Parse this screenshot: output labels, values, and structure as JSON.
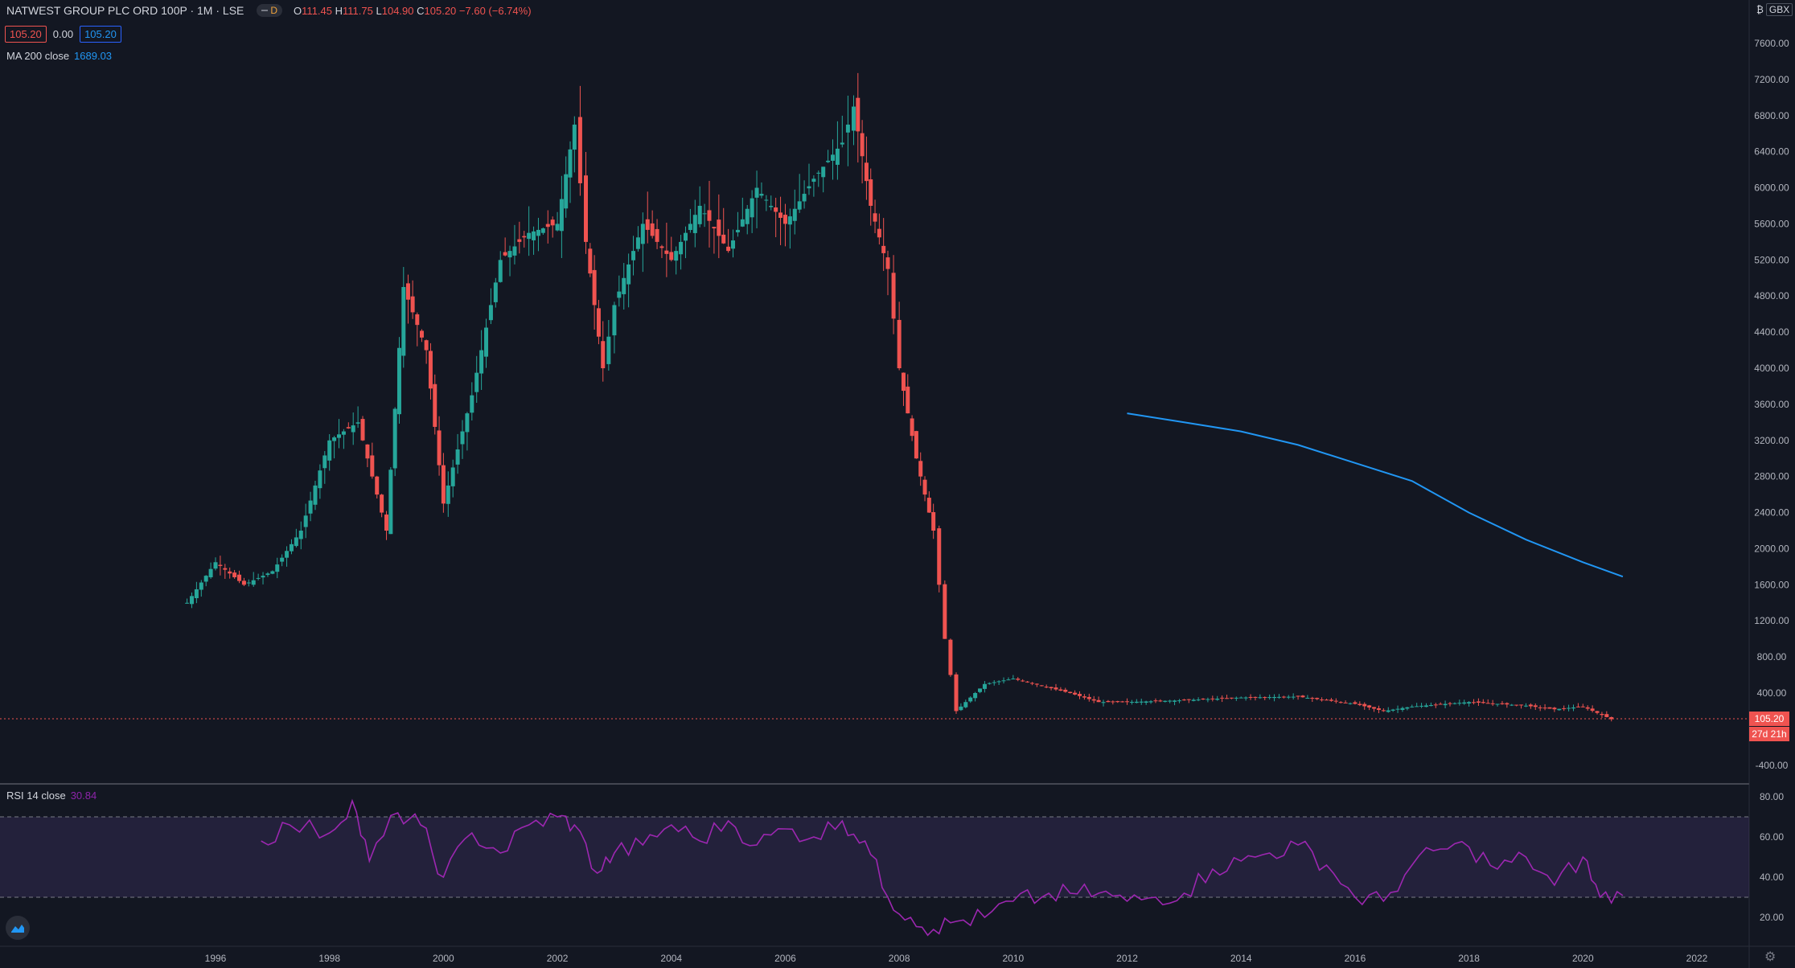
{
  "header": {
    "symbol": "NATWEST GROUP PLC ORD 100P · 1M · LSE",
    "interval_badge": "D",
    "ohlc": {
      "o_label": "O",
      "o": "111.45",
      "h_label": "H",
      "h": "111.75",
      "l_label": "L",
      "l": "104.90",
      "c_label": "C",
      "c": "105.20",
      "change": "−7.60 (−6.74%)"
    },
    "bid": "105.20",
    "spread": "0.00",
    "ask": "105.20"
  },
  "indicators": {
    "ma_label": "MA 200 close",
    "ma_value": "1689.03",
    "rsi_label": "RSI 14 close",
    "rsi_value": "30.84"
  },
  "price_axis": {
    "currency": "GBX",
    "ticks": [
      "7600.00",
      "7200.00",
      "6800.00",
      "6400.00",
      "6000.00",
      "5600.00",
      "5200.00",
      "4800.00",
      "4400.00",
      "4000.00",
      "3600.00",
      "3200.00",
      "2800.00",
      "2400.00",
      "2000.00",
      "1600.00",
      "1200.00",
      "800.00",
      "400.00",
      "-400.00"
    ],
    "last_price_label": "105.20",
    "countdown_label": "27d 21h"
  },
  "rsi_axis": {
    "ticks": [
      "80.00",
      "60.00",
      "40.00",
      "20.00"
    ]
  },
  "time_axis": {
    "ticks": [
      "1996",
      "1998",
      "2000",
      "2002",
      "2004",
      "2006",
      "2008",
      "2010",
      "2012",
      "2014",
      "2016",
      "2018",
      "2020",
      "2022"
    ]
  },
  "colors": {
    "background": "#131722",
    "up": "#26a69a",
    "down": "#ef5350",
    "ma": "#2196f3",
    "rsi": "#9c27b0"
  },
  "chart_data": [
    {
      "type": "candlestick",
      "title": "NATWEST GROUP PLC ORD 100P",
      "interval": "1M",
      "ylim": [
        -600,
        7900
      ],
      "xlim": [
        1994.0,
        2023.0
      ],
      "series": [
        {
          "name": "price",
          "x": [
            1995.5,
            1996.0,
            1996.5,
            1997.0,
            1997.5,
            1998.0,
            1998.5,
            1999.0,
            1999.3,
            1999.7,
            2000.0,
            2000.5,
            2001.0,
            2001.5,
            2002.0,
            2002.3,
            2002.5,
            2002.8,
            2003.0,
            2003.5,
            2004.0,
            2004.5,
            2005.0,
            2005.5,
            2006.0,
            2006.5,
            2007.0,
            2007.2,
            2007.5,
            2007.8,
            2008.0,
            2008.3,
            2008.6,
            2008.8,
            2009.0,
            2009.5,
            2010.0,
            2010.5,
            2011.0,
            2011.5,
            2012.0,
            2013.0,
            2014.0,
            2015.0,
            2016.0,
            2016.5,
            2017.0,
            2018.0,
            2019.0,
            2019.5,
            2020.0,
            2020.5
          ],
          "values": [
            1400,
            1850,
            1600,
            1750,
            2200,
            3200,
            3400,
            2200,
            4900,
            4200,
            2500,
            3700,
            5200,
            5500,
            5600,
            6700,
            5400,
            4000,
            4700,
            5600,
            5200,
            5800,
            5300,
            6000,
            5600,
            6100,
            6500,
            6900,
            5800,
            5100,
            4000,
            3000,
            2200,
            1000,
            200,
            500,
            560,
            480,
            400,
            300,
            300,
            320,
            350,
            360,
            280,
            200,
            250,
            300,
            260,
            220,
            250,
            110
          ]
        },
        {
          "name": "MA 200 close",
          "x": [
            2012.0,
            2013.0,
            2014.0,
            2015.0,
            2016.0,
            2017.0,
            2018.0,
            2019.0,
            2020.0,
            2020.7
          ],
          "values": [
            3500,
            3400,
            3300,
            3150,
            2950,
            2750,
            2400,
            2100,
            1850,
            1690
          ]
        }
      ]
    },
    {
      "type": "line",
      "title": "RSI 14 close",
      "ylim": [
        10,
        90
      ],
      "bands": [
        30,
        70
      ],
      "series": [
        {
          "name": "RSI 14 close",
          "x": [
            1996.8,
            1997.3,
            1998.0,
            1998.4,
            1998.7,
            1999.2,
            1999.6,
            2000.0,
            2000.5,
            2001.0,
            2001.5,
            2002.0,
            2002.3,
            2002.7,
            2003.0,
            2003.5,
            2004.0,
            2004.5,
            2005.0,
            2005.5,
            2006.0,
            2006.5,
            2007.0,
            2007.4,
            2007.8,
            2008.2,
            2008.6,
            2009.0,
            2009.5,
            2010.0,
            2010.5,
            2011.0,
            2011.5,
            2012.0,
            2012.5,
            2013.0,
            2013.5,
            2014.0,
            2014.5,
            2015.0,
            2015.5,
            2016.0,
            2016.5,
            2017.0,
            2017.5,
            2018.0,
            2018.5,
            2019.0,
            2019.5,
            2020.0,
            2020.3,
            2020.7
          ],
          "values": [
            58,
            66,
            62,
            78,
            48,
            72,
            66,
            40,
            62,
            52,
            66,
            70,
            66,
            42,
            52,
            56,
            66,
            58,
            68,
            56,
            64,
            60,
            68,
            58,
            30,
            20,
            14,
            18,
            20,
            28,
            30,
            32,
            32,
            28,
            30,
            32,
            44,
            48,
            52,
            56,
            46,
            30,
            28,
            46,
            54,
            55,
            44,
            50,
            36,
            50,
            30,
            30.84
          ]
        }
      ]
    }
  ]
}
